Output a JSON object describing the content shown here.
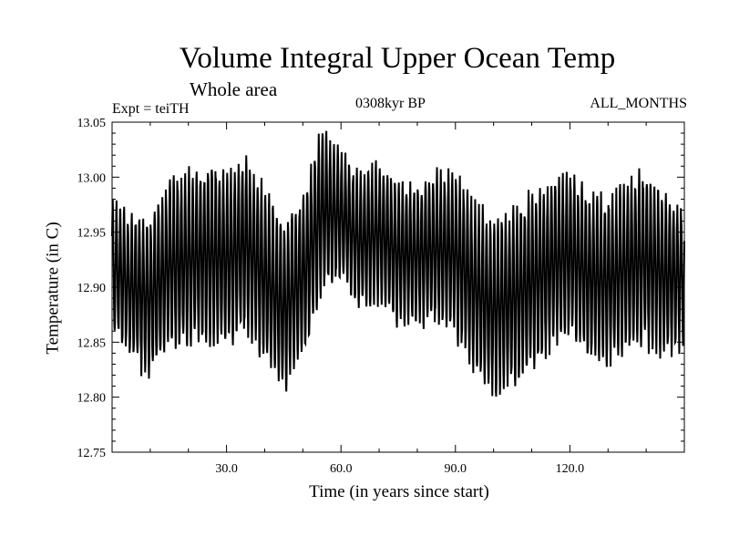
{
  "chart_data": {
    "type": "line",
    "title": "Volume Integral Upper Ocean Temp",
    "subtitle": "Whole area",
    "annotations": {
      "experiment": "Expt = teiTH",
      "period": "0308kyr BP",
      "months": "ALL_MONTHS"
    },
    "xlabel": "Time (in years since start)",
    "ylabel": "Temperature (in C)",
    "xlim": [
      0,
      150
    ],
    "ylim": [
      12.75,
      13.05
    ],
    "x_ticks": [
      30.0,
      60.0,
      90.0,
      120.0
    ],
    "x_tick_labels": [
      "30.0",
      "60.0",
      "90.0",
      "120.0"
    ],
    "y_ticks": [
      12.75,
      12.8,
      12.85,
      12.9,
      12.95,
      13.0,
      13.05
    ],
    "y_tick_labels": [
      "12.75",
      "12.80",
      "12.85",
      "12.90",
      "12.95",
      "13.00",
      "13.05"
    ],
    "series": [
      {
        "name": "Temperature",
        "color": "#000000",
        "seasonal_cycle_per_year": 1,
        "description_values": "annual-mean trend (year, temperature); monthly values oscillate about this mean",
        "annual_mean": [
          [
            0,
            12.92
          ],
          [
            5,
            12.9
          ],
          [
            10,
            12.89
          ],
          [
            15,
            12.92
          ],
          [
            20,
            12.925
          ],
          [
            25,
            12.93
          ],
          [
            30,
            12.925
          ],
          [
            35,
            12.94
          ],
          [
            40,
            12.91
          ],
          [
            45,
            12.88
          ],
          [
            50,
            12.91
          ],
          [
            55,
            12.97
          ],
          [
            60,
            12.965
          ],
          [
            65,
            12.94
          ],
          [
            70,
            12.95
          ],
          [
            75,
            12.93
          ],
          [
            80,
            12.93
          ],
          [
            85,
            12.935
          ],
          [
            90,
            12.93
          ],
          [
            95,
            12.9
          ],
          [
            100,
            12.88
          ],
          [
            105,
            12.89
          ],
          [
            110,
            12.905
          ],
          [
            115,
            12.92
          ],
          [
            120,
            12.93
          ],
          [
            125,
            12.91
          ],
          [
            130,
            12.905
          ],
          [
            135,
            12.92
          ],
          [
            140,
            12.925
          ],
          [
            145,
            12.91
          ],
          [
            150,
            12.91
          ]
        ],
        "seasonal_amplitude": [
          [
            0,
            0.055
          ],
          [
            10,
            0.07
          ],
          [
            20,
            0.075
          ],
          [
            30,
            0.075
          ],
          [
            40,
            0.075
          ],
          [
            50,
            0.07
          ],
          [
            55,
            0.07
          ],
          [
            60,
            0.055
          ],
          [
            70,
            0.06
          ],
          [
            80,
            0.06
          ],
          [
            90,
            0.07
          ],
          [
            100,
            0.075
          ],
          [
            110,
            0.075
          ],
          [
            120,
            0.07
          ],
          [
            130,
            0.07
          ],
          [
            140,
            0.075
          ],
          [
            150,
            0.06
          ]
        ]
      }
    ]
  }
}
